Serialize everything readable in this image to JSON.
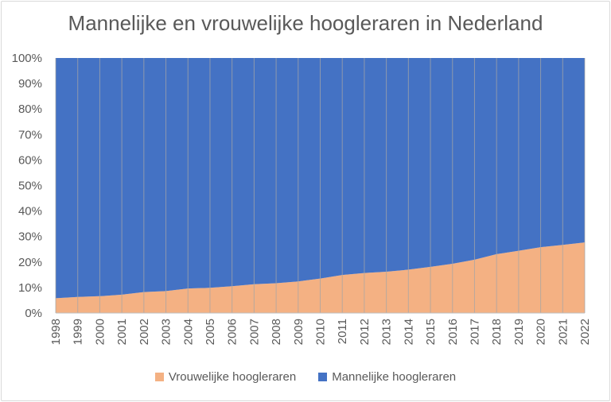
{
  "chart_data": {
    "type": "area",
    "stacked": "percent",
    "title": "Mannelijke en vrouwelijke hoogleraren in Nederland",
    "x": [
      "1998",
      "1999",
      "2000",
      "2001",
      "2002",
      "2003",
      "2004",
      "2005",
      "2006",
      "2007",
      "2008",
      "2009",
      "2010",
      "2011",
      "2012",
      "2013",
      "2014",
      "2015",
      "2016",
      "2017",
      "2018",
      "2019",
      "2020",
      "2021",
      "2022"
    ],
    "series": [
      {
        "name": "Vrouwelijke hoogleraren",
        "color": "#F4B183",
        "values": [
          5.8,
          6.3,
          6.6,
          7.2,
          8.2,
          8.6,
          9.6,
          9.9,
          10.5,
          11.3,
          11.7,
          12.4,
          13.5,
          14.9,
          15.7,
          16.2,
          17.0,
          18.1,
          19.3,
          20.9,
          23.1,
          24.4,
          25.8,
          26.7,
          27.7
        ]
      },
      {
        "name": "Mannelijke hoogleraren",
        "color": "#4472C4",
        "values": [
          94.2,
          93.7,
          93.4,
          92.8,
          91.8,
          91.4,
          90.4,
          90.1,
          89.5,
          88.7,
          88.3,
          87.6,
          86.5,
          85.1,
          84.3,
          83.8,
          83.0,
          81.9,
          80.7,
          79.1,
          76.9,
          75.6,
          74.2,
          73.3,
          72.3
        ]
      }
    ],
    "ylim": [
      0,
      100
    ],
    "y_ticks": [
      "0%",
      "10%",
      "20%",
      "30%",
      "40%",
      "50%",
      "60%",
      "70%",
      "80%",
      "90%",
      "100%"
    ],
    "legend_position": "bottom",
    "grid": "vertical"
  }
}
